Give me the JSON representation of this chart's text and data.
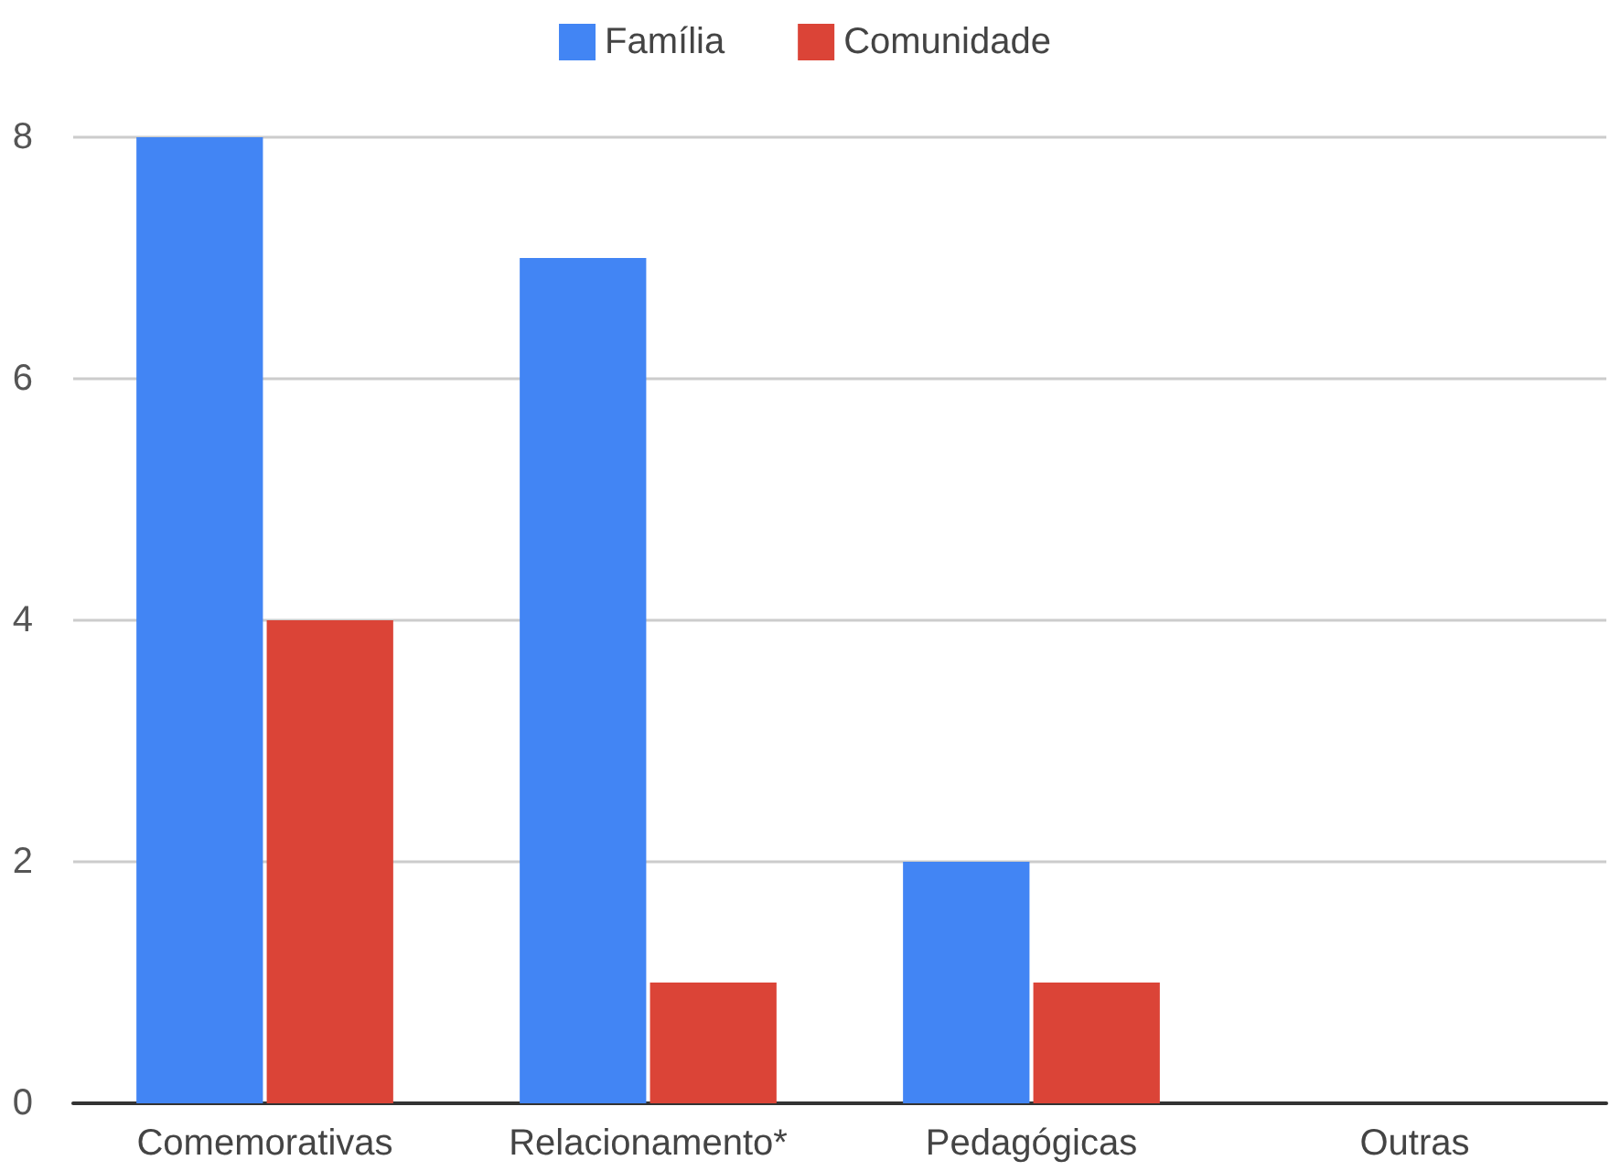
{
  "chart_data": {
    "type": "bar",
    "categories": [
      "Comemorativas",
      "Relacionamento*",
      "Pedagógicas",
      "Outras"
    ],
    "series": [
      {
        "name": "Família",
        "color": "#4285f4",
        "values": [
          8,
          7,
          2,
          0
        ]
      },
      {
        "name": "Comunidade",
        "color": "#db4437",
        "values": [
          4,
          1,
          1,
          0
        ]
      }
    ],
    "ylim": [
      0,
      8
    ],
    "yticks": [
      0,
      2,
      4,
      6,
      8
    ],
    "grid": "y",
    "legend": "top"
  }
}
